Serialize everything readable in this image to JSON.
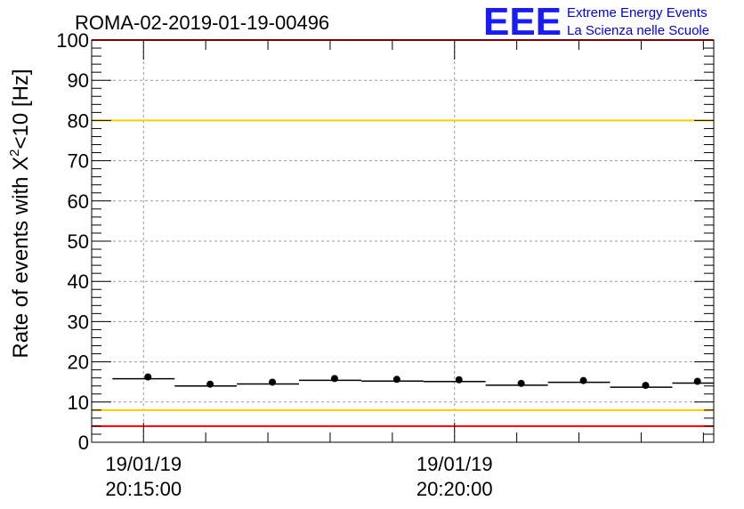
{
  "chart_data": {
    "type": "scatter",
    "title": "ROMA-02-2019-01-19-00496",
    "ylabel": {
      "prefix": "Rate of events with X",
      "superscript": "2",
      "suffix": "<10 [Hz]"
    },
    "xlabel": "",
    "ylim": [
      0,
      100
    ],
    "y_ticks": [
      "0",
      "10",
      "20",
      "30",
      "40",
      "50",
      "60",
      "70",
      "80",
      "90",
      "100"
    ],
    "x_ticks": [
      {
        "date": "19/01/19",
        "time": "20:15:00"
      },
      {
        "date": "19/01/19",
        "time": "20:20:00"
      }
    ],
    "grid": true,
    "points": [
      {
        "x": "20:14:30-20:15:30",
        "y": 15.8
      },
      {
        "x": "20:15:30-20:16:30",
        "y": 14.0
      },
      {
        "x": "20:16:30-20:17:30",
        "y": 14.5
      },
      {
        "x": "20:17:30-20:18:30",
        "y": 15.4
      },
      {
        "x": "20:18:30-20:19:30",
        "y": 15.2
      },
      {
        "x": "20:19:30-20:20:30",
        "y": 15.1
      },
      {
        "x": "20:20:30-20:21:30",
        "y": 14.2
      },
      {
        "x": "20:21:30-20:22:30",
        "y": 14.9
      },
      {
        "x": "20:22:30-20:23:30",
        "y": 13.7
      },
      {
        "x": "20:23:30-20:24:10",
        "y": 14.7
      }
    ],
    "reference_lines": [
      {
        "y": 100,
        "color": "#ff0000"
      },
      {
        "y": 80,
        "color": "#ffcc00"
      },
      {
        "y": 8,
        "color": "#ffcc00"
      },
      {
        "y": 4,
        "color": "#ff0000"
      }
    ]
  },
  "logo": {
    "letters": "EEE",
    "line1": "Extreme Energy Events",
    "line2": "La Scienza nelle Scuole",
    "color": "#0000ee"
  }
}
